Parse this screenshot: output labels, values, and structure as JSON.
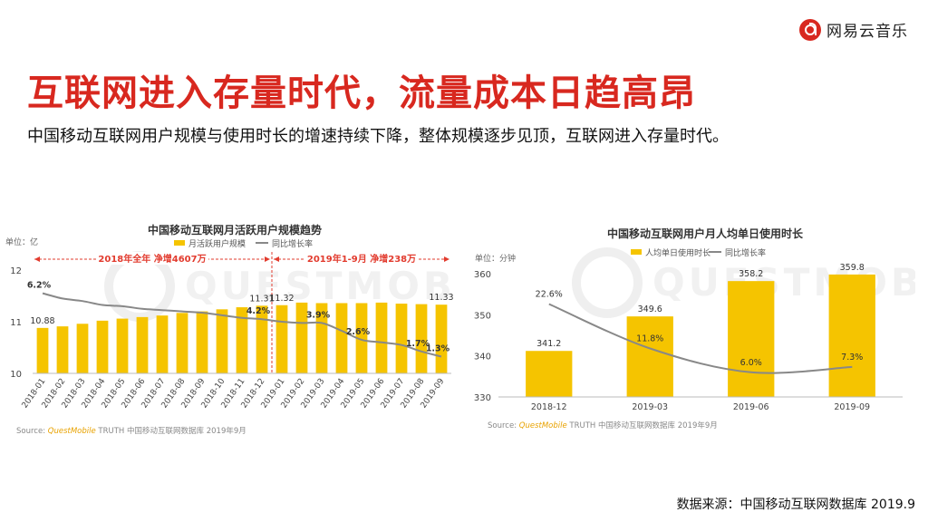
{
  "brand": {
    "name": "网易云音乐",
    "logo_icon": "netease-cloud-music-logo-icon",
    "accent": "#d8281f"
  },
  "title": "互联网进入存量时代，流量成本日趋高昂",
  "subtitle": "中国移动互联网用户规模与使用时长的增速持续下降，整体规模逐步见顶，互联网进入存量时代。",
  "source_note": "数据来源：中国移动互联网数据库 2019.9",
  "chart_data": [
    {
      "type": "bar",
      "title": "中国移动互联网月活跃用户规模趋势",
      "unit": "单位：亿",
      "watermark": "QUESTMOBILE",
      "categories": [
        "2018-01",
        "2018-02",
        "2018-03",
        "2018-04",
        "2018-05",
        "2018-06",
        "2018-07",
        "2018-08",
        "2018-09",
        "2018-10",
        "2018-11",
        "2018-12",
        "2019-01",
        "2019-02",
        "2019-03",
        "2019-04",
        "2019-05",
        "2019-06",
        "2019-07",
        "2019-08",
        "2019-09"
      ],
      "series": [
        {
          "name": "月活跃用户规模",
          "kind": "bar",
          "color": "#f5c400",
          "values": [
            10.88,
            10.91,
            10.96,
            11.02,
            11.06,
            11.09,
            11.12,
            11.17,
            11.2,
            11.24,
            11.28,
            11.31,
            11.32,
            11.37,
            11.36,
            11.36,
            11.36,
            11.37,
            11.35,
            11.34,
            11.33
          ]
        },
        {
          "name": "同比增长率",
          "kind": "line",
          "color": "#888888",
          "values": [
            6.2,
            5.8,
            5.6,
            5.3,
            5.2,
            5.0,
            4.9,
            4.8,
            4.7,
            4.5,
            4.3,
            4.2,
            4.0,
            3.9,
            3.9,
            3.3,
            2.6,
            2.4,
            2.2,
            1.7,
            1.3
          ]
        }
      ],
      "bar_labels": [
        {
          "index": 0,
          "text": "10.88"
        },
        {
          "index": 11,
          "text": "11.31"
        },
        {
          "index": 12,
          "text": "11.32"
        },
        {
          "index": 20,
          "text": "11.33"
        }
      ],
      "line_labels": [
        {
          "index": 0,
          "text": "6.2%"
        },
        {
          "index": 11,
          "text": "4.2%"
        },
        {
          "index": 14,
          "text": "3.9%"
        },
        {
          "index": 16,
          "text": "2.6%"
        },
        {
          "index": 19,
          "text": "1.7%"
        },
        {
          "index": 20,
          "text": "1.3%"
        }
      ],
      "yticks": [
        "10",
        "11",
        "12"
      ],
      "ylim": [
        10,
        12
      ],
      "line_ylim": [
        0,
        8
      ],
      "period_annotations": [
        {
          "text": "2018年全年  净增4607万",
          "from_index": 0,
          "to_index": 11
        },
        {
          "text": "2019年1-9月  净增238万",
          "from_index": 12,
          "to_index": 20
        }
      ],
      "source": {
        "prefix": "Source:",
        "brand": "QuestMobile",
        "rest": "TRUTH 中国移动互联网数据库 2019年9月"
      }
    },
    {
      "type": "bar",
      "title": "中国移动互联网用户月人均单日使用时长",
      "unit": "单位：分钟",
      "watermark": "QUESTMOBILE",
      "categories": [
        "2018-12",
        "2019-03",
        "2019-06",
        "2019-09"
      ],
      "series": [
        {
          "name": "人均单日使用时长",
          "kind": "bar",
          "color": "#f5c400",
          "values": [
            341.2,
            349.6,
            358.2,
            359.8
          ]
        },
        {
          "name": "同比增长率",
          "kind": "line",
          "color": "#888888",
          "values": [
            22.6,
            11.8,
            6.0,
            7.3
          ]
        }
      ],
      "bar_labels_text": [
        "341.2",
        "349.6",
        "358.2",
        "359.8"
      ],
      "line_labels_text": [
        "22.6%",
        "11.8%",
        "6.0%",
        "7.3%"
      ],
      "yticks": [
        "330",
        "340",
        "350",
        "360"
      ],
      "ylim": [
        330,
        360
      ],
      "line_ylim": [
        0,
        30
      ],
      "source": {
        "prefix": "Source:",
        "brand": "QuestMobile",
        "rest": "TRUTH 中国移动互联网数据库 2019年9月"
      }
    }
  ]
}
